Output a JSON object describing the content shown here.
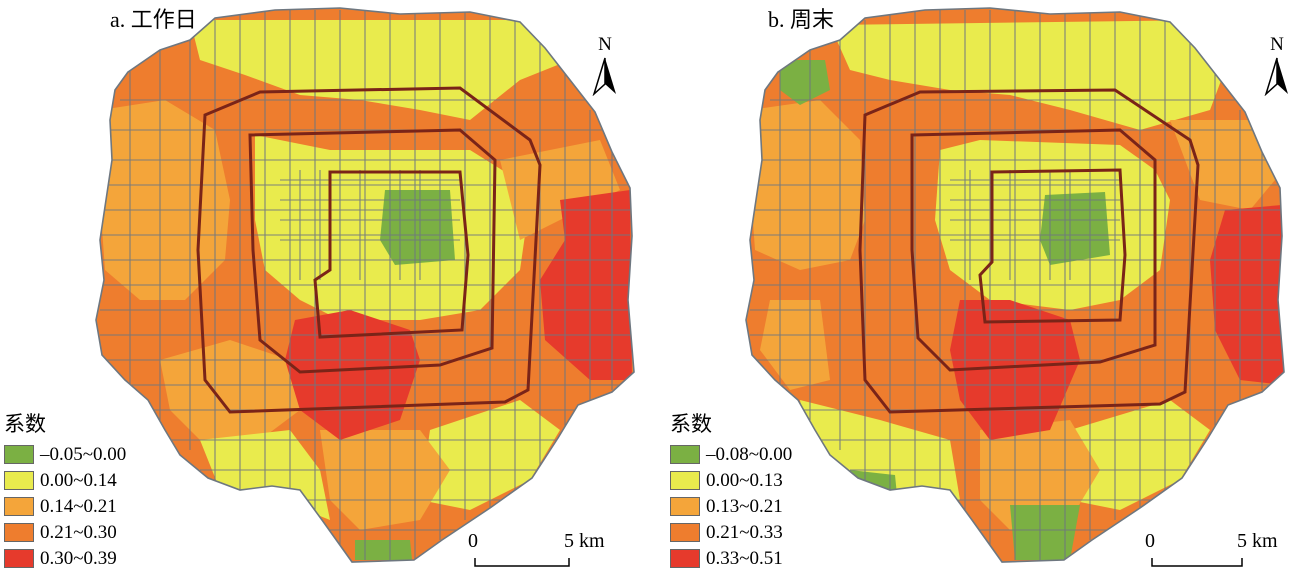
{
  "panels": [
    {
      "title": "a. 工作日",
      "legend": {
        "title": "系数",
        "items": [
          {
            "label": "–0.05~0.00",
            "color": "#7bb043"
          },
          {
            "label": "0.00~0.14",
            "color": "#e9eb4d"
          },
          {
            "label": "0.14~0.21",
            "color": "#f4a53a"
          },
          {
            "label": "0.21~0.30",
            "color": "#ee7d2e"
          },
          {
            "label": "0.30~0.39",
            "color": "#e63a2c"
          }
        ]
      },
      "scale": {
        "zero": "0",
        "end": "5 km"
      },
      "north": "N"
    },
    {
      "title": "b. 周末",
      "legend": {
        "title": "系数",
        "items": [
          {
            "label": "–0.08~0.00",
            "color": "#7bb043"
          },
          {
            "label": "0.00~0.13",
            "color": "#e9eb4d"
          },
          {
            "label": "0.13~0.21",
            "color": "#f4a53a"
          },
          {
            "label": "0.21~0.33",
            "color": "#ee7d2e"
          },
          {
            "label": "0.33~0.51",
            "color": "#e63a2c"
          }
        ]
      },
      "scale": {
        "zero": "0",
        "end": "5 km"
      },
      "north": "N"
    }
  ],
  "colors": {
    "boundary": "#6e7780",
    "ring_road": "#7a2418"
  }
}
